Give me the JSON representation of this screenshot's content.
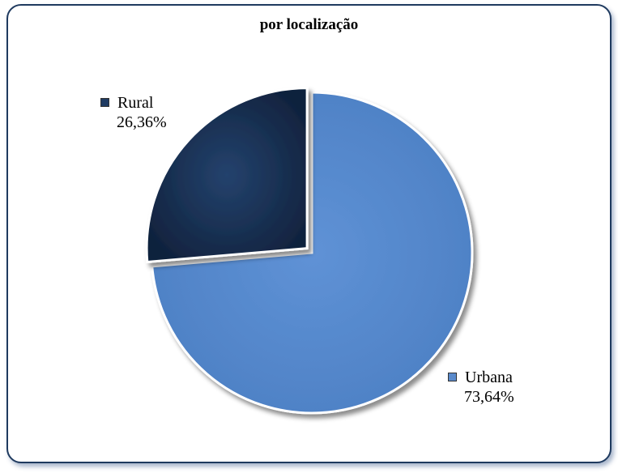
{
  "chart_data": {
    "type": "pie",
    "title": "por localização",
    "slices": [
      {
        "name": "Urbana",
        "value": 73.64,
        "label": "73,64%",
        "color": "#5a8acb"
      },
      {
        "name": "Rural",
        "value": 26.36,
        "label": "26,36%",
        "color": "#1f3b62"
      }
    ]
  }
}
